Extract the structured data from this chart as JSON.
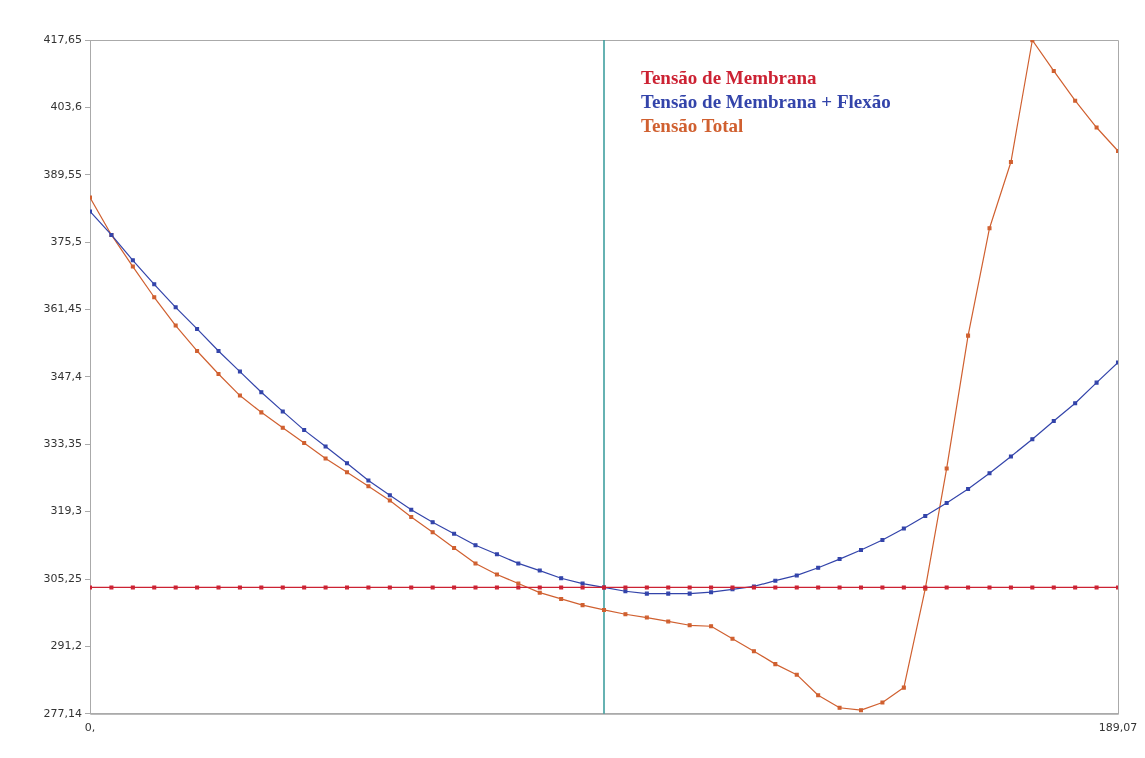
{
  "chart_data": {
    "type": "line",
    "x": [
      0,
      3.939,
      7.878,
      11.817,
      15.756,
      19.695,
      23.634,
      27.573,
      31.512,
      35.451,
      39.39,
      43.329,
      47.268,
      51.206,
      55.145,
      59.084,
      63.023,
      66.962,
      70.901,
      74.84,
      78.779,
      82.718,
      86.657,
      90.596,
      94.535,
      98.474,
      102.413,
      106.352,
      110.291,
      114.23,
      118.169,
      122.108,
      126.047,
      129.986,
      133.925,
      137.864,
      141.803,
      145.742,
      149.681,
      153.62,
      157.559,
      161.498,
      165.437,
      169.376,
      173.315,
      177.254,
      181.193,
      185.132,
      189.07
    ],
    "series": [
      {
        "name": "Tensão de Membrana",
        "color": "#cc2233",
        "values": [
          303.5,
          303.5,
          303.5,
          303.5,
          303.5,
          303.5,
          303.5,
          303.5,
          303.5,
          303.5,
          303.5,
          303.5,
          303.5,
          303.5,
          303.5,
          303.5,
          303.5,
          303.5,
          303.5,
          303.5,
          303.5,
          303.5,
          303.5,
          303.5,
          303.5,
          303.5,
          303.5,
          303.5,
          303.5,
          303.5,
          303.5,
          303.5,
          303.5,
          303.5,
          303.5,
          303.5,
          303.5,
          303.5,
          303.5,
          303.5,
          303.5,
          303.5,
          303.5,
          303.5,
          303.5,
          303.5,
          303.5,
          303.5,
          303.5
        ]
      },
      {
        "name": "Tensão de Membrana + Flexão",
        "color": "#3344aa",
        "values": [
          381.9,
          377.0,
          371.7,
          366.7,
          361.9,
          357.4,
          352.8,
          348.5,
          344.2,
          340.2,
          336.3,
          332.9,
          329.4,
          325.8,
          322.7,
          319.7,
          317.1,
          314.7,
          312.3,
          310.4,
          308.5,
          307.0,
          305.4,
          304.3,
          303.5,
          302.7,
          302.2,
          302.2,
          302.2,
          302.5,
          303.1,
          303.7,
          304.9,
          306.0,
          307.6,
          309.4,
          311.3,
          313.4,
          315.8,
          318.4,
          321.1,
          324.0,
          327.3,
          330.8,
          334.4,
          338.2,
          341.9,
          346.2,
          350.4
        ]
      },
      {
        "name": "Tensão Total",
        "color": "#d06030",
        "values": [
          384.8,
          377.0,
          370.4,
          364.0,
          358.1,
          352.8,
          348.0,
          343.5,
          340.0,
          336.8,
          333.6,
          330.4,
          327.5,
          324.6,
          321.6,
          318.2,
          315.0,
          311.7,
          308.5,
          306.2,
          304.3,
          302.4,
          301.1,
          299.8,
          298.8,
          297.9,
          297.2,
          296.4,
          295.6,
          295.4,
          292.8,
          290.2,
          287.5,
          285.3,
          281.0,
          278.4,
          277.9,
          279.5,
          282.6,
          303.2,
          328.3,
          356.0,
          378.4,
          392.2,
          417.6,
          411.2,
          405.0,
          399.4,
          394.5
        ]
      }
    ],
    "xlim": [
      0,
      189.07
    ],
    "xticks": [
      {
        "value": 0,
        "label": "0,"
      },
      {
        "value": 189.07,
        "label": "189,07"
      }
    ],
    "ylim": [
      277.14,
      417.65
    ],
    "yticks": [
      {
        "value": 277.14,
        "label": "277,14"
      },
      {
        "value": 291.2,
        "label": "291,2"
      },
      {
        "value": 305.25,
        "label": "305,25"
      },
      {
        "value": 319.3,
        "label": "319,3"
      },
      {
        "value": 333.35,
        "label": "333,35"
      },
      {
        "value": 347.4,
        "label": "347,4"
      },
      {
        "value": 361.45,
        "label": "361,45"
      },
      {
        "value": 375.5,
        "label": "375,5"
      },
      {
        "value": 389.55,
        "label": "389,55"
      },
      {
        "value": 403.6,
        "label": "403,6"
      },
      {
        "value": 417.65,
        "label": "417,65"
      }
    ],
    "ref_lines": [
      {
        "axis": "x",
        "value": 94.535,
        "color": "#339999"
      }
    ],
    "grid": false,
    "legend": "top right",
    "marker": "square",
    "line_style": "solid"
  }
}
